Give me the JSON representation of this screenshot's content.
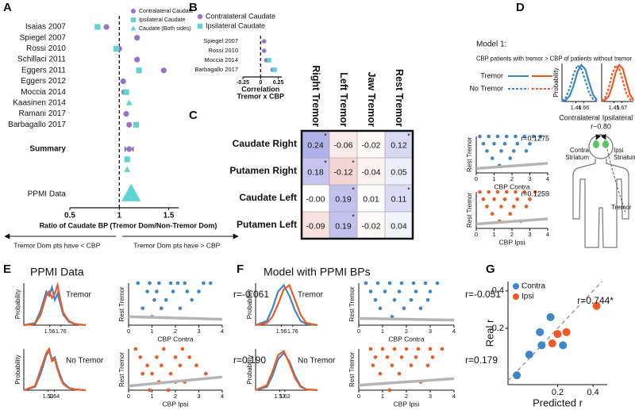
{
  "panels": [
    {
      "label": "A"
    },
    {
      "label": "B"
    },
    {
      "label": "C"
    },
    {
      "label": "D"
    },
    {
      "label": "E",
      "title": "PPMI Data"
    },
    {
      "label": "F",
      "title": "Model with PPMI BPs"
    },
    {
      "label": "G"
    }
  ],
  "diagram": {
    "title": "Model 1:",
    "statement": "CBP patients with tremor > CBP of patients without tremor",
    "legend": [
      "Tremor",
      "No Tremor"
    ],
    "correlation": "r~0.80",
    "contra_label": [
      "Contra",
      "Striatum"
    ],
    "ipsi_label": [
      "Ipsi",
      "Striatum"
    ],
    "effector_label": "Tremor"
  },
  "chart_data": [
    {
      "type": "forest",
      "categories": [
        "Isaias 2007",
        "Spiegel 2007",
        "Rossi 2010",
        "Schillaci 2011",
        "Eggers 2011",
        "Eggers 2012",
        "Moccia 2014",
        "Kaasinen 2014",
        "Ramani 2017",
        "Barbagallo 2017",
        "Summary",
        null,
        null,
        "PPMI Data"
      ],
      "bold_category": 10,
      "series": [
        {
          "name": "Contralateral Caudate",
          "color": "#9a72c9",
          "marker": "circle",
          "values": [
            0.87,
            1.18,
            1.0,
            1.18,
            1.45,
            1.04,
            1.05,
            null,
            1.07,
            1.1,
            1.1,
            null,
            null,
            null
          ],
          "errors": [
            null,
            null,
            null,
            null,
            null,
            null,
            null,
            null,
            null,
            null,
            0.04,
            null,
            null,
            null
          ]
        },
        {
          "name": "Ipsilateral Caudate",
          "color": "#5fd3d1",
          "marker": "square",
          "values": [
            0.78,
            null,
            0.97,
            null,
            1.2,
            null,
            1.07,
            null,
            null,
            1.17,
            null,
            1.08,
            null,
            null
          ]
        },
        {
          "name": "Caudate (Both sides)",
          "color": "#5fd3d1",
          "marker": "triangle",
          "values": [
            null,
            null,
            null,
            null,
            null,
            null,
            null,
            1.1,
            null,
            null,
            null,
            null,
            1.08,
            1.12
          ]
        }
      ],
      "xlim": [
        0.5,
        1.6
      ],
      "xticks": [
        0.5,
        1,
        1.5
      ],
      "reference_line": 1,
      "xlabel": [
        "Ratio of Caudate BP (Tremor Dom/Non-Tremor Dom)"
      ],
      "annotations": [
        "Tremor Dom pts have < CBP",
        "Tremor Dom pts have > CBP"
      ]
    },
    {
      "type": "forest",
      "categories": [
        "Spiegel 2007",
        "Rossi 2010",
        "Moccia 2014",
        "Barbagallo 2017"
      ],
      "series": [
        {
          "name": "Contralateral Caudate",
          "color": "#9a72c9",
          "marker": "circle",
          "values": [
            0.05,
            0.05,
            0.08,
            0.17
          ]
        },
        {
          "name": "Ipsilateral Caudate",
          "color": "#5fd3d1",
          "marker": "square",
          "values": [
            null,
            null,
            0.12,
            0.2
          ]
        }
      ],
      "xlim": [
        -0.25,
        0.3
      ],
      "xticks": [
        -0.25,
        0,
        0.25
      ],
      "reference_line": 0,
      "xlabel": [
        "Correlation",
        "Tremor x CBP"
      ]
    },
    {
      "type": "heatmap",
      "columns": [
        "Right Tremor",
        "Left Tremor",
        "Jaw Tremor",
        "Rest Tremor"
      ],
      "rows": [
        "Caudate Right",
        "Putamen Right",
        "Caudate Left",
        "Putamen Left"
      ],
      "values": [
        [
          0.24,
          -0.06,
          -0.02,
          0.12
        ],
        [
          0.18,
          -0.12,
          -0.04,
          0.05
        ],
        [
          0,
          0.19,
          0.01,
          0.11
        ],
        [
          -0.09,
          0.19,
          -0.02,
          0.04
        ]
      ],
      "value_labels": [
        [
          "0.24",
          "-0.06",
          "-0.02",
          "0.12"
        ],
        [
          "0.18",
          "-0.12",
          "-0.04",
          "0.05"
        ],
        [
          "-0.00",
          "0.19",
          "0.01",
          "0.11"
        ],
        [
          "-0.09",
          "0.19",
          "-0.02",
          "0.04"
        ]
      ],
      "significant": [
        [
          true,
          false,
          false,
          true
        ],
        [
          true,
          true,
          false,
          false
        ],
        [
          false,
          true,
          false,
          true
        ],
        [
          false,
          true,
          false,
          false
        ]
      ],
      "significance_label": "*",
      "clim": [
        -0.25,
        0.25
      ],
      "colors": [
        "#d9534f",
        "#5b5bd2"
      ]
    },
    {
      "type": "line",
      "x": [
        1.1,
        1.2,
        1.3,
        1.4,
        1.5,
        1.6,
        1.7,
        1.8,
        1.9,
        2.0
      ],
      "xlim": [
        1.1,
        2.0
      ],
      "ylim": [
        0,
        1
      ],
      "xticks": [
        1.46,
        1.66
      ],
      "xlabel": "Contralateral",
      "ylabel": "Probability",
      "series": [
        {
          "color": "#3d87c8",
          "dash": false,
          "values": [
            0.01,
            0.04,
            0.15,
            0.42,
            0.78,
            0.96,
            0.85,
            0.5,
            0.18,
            0.04
          ]
        },
        {
          "color": "#3d87c8",
          "dash": true,
          "values": [
            0.02,
            0.1,
            0.35,
            0.72,
            0.95,
            0.86,
            0.55,
            0.22,
            0.06,
            0.01
          ]
        }
      ]
    },
    {
      "type": "line",
      "x": [
        1.1,
        1.2,
        1.3,
        1.4,
        1.5,
        1.6,
        1.7,
        1.8,
        1.9,
        2.0
      ],
      "xlim": [
        1.1,
        2.0
      ],
      "ylim": [
        0,
        1
      ],
      "xticks": [
        1.45,
        1.67
      ],
      "xlabel": "Ipsilateral",
      "series": [
        {
          "color": "#ef5a24",
          "dash": false,
          "values": [
            0.01,
            0.04,
            0.14,
            0.4,
            0.77,
            0.96,
            0.86,
            0.52,
            0.19,
            0.04
          ]
        },
        {
          "color": "#ef5a24",
          "dash": true,
          "values": [
            0.02,
            0.1,
            0.36,
            0.73,
            0.95,
            0.85,
            0.54,
            0.21,
            0.06,
            0.01
          ]
        }
      ]
    },
    {
      "type": "scatter",
      "color": "#3d87c8",
      "xlim": [
        0,
        4
      ],
      "ylim": [
        0,
        5
      ],
      "xticks": [
        0,
        1,
        2,
        3,
        4
      ],
      "xlabel": "CBP Contra",
      "ylabel": "Rest Tremor",
      "annotation": "r=0.1275",
      "x": [
        0.2,
        0.7,
        1.2,
        1.7,
        2.2,
        2.7,
        3.2,
        3.6,
        0.4,
        1.0,
        1.6,
        2.3,
        3.0,
        0.6,
        1.4,
        2.1,
        2.8,
        0.9,
        1.9,
        1.3
      ],
      "y": [
        5,
        5,
        5,
        5,
        5,
        5,
        5,
        5,
        4,
        4,
        4,
        4,
        4,
        3,
        3,
        3,
        3,
        2,
        2,
        1
      ],
      "trend": {
        "x": [
          0,
          4
        ],
        "y": [
          0.6,
          1.3
        ]
      }
    },
    {
      "type": "scatter",
      "color": "#ef5a24",
      "xlim": [
        0,
        4
      ],
      "ylim": [
        0,
        5
      ],
      "xticks": [
        0,
        1,
        2,
        3,
        4
      ],
      "xlabel": "CBP Ipsi",
      "ylabel": "Rest Tremor",
      "annotation": "r=0.1259",
      "x": [
        0.2,
        0.7,
        1.2,
        1.7,
        2.2,
        2.7,
        3.3,
        0.4,
        1.0,
        1.6,
        2.3,
        3.0,
        0.6,
        1.4,
        2.1,
        2.8,
        0.9,
        1.9,
        1.3,
        2.5
      ],
      "y": [
        5,
        5,
        5,
        5,
        5,
        5,
        5,
        4,
        4,
        4,
        4,
        4,
        3,
        3,
        3,
        3,
        2,
        2,
        1,
        1
      ],
      "trend": {
        "x": [
          0,
          4
        ],
        "y": [
          0.6,
          1.3
        ]
      }
    },
    {
      "type": "line",
      "title": "Tremor",
      "ylabel": "Probability",
      "x": [
        1.1,
        1.3,
        1.4,
        1.5,
        1.55,
        1.6,
        1.65,
        1.7,
        1.75,
        1.8,
        1.9,
        2.0,
        2.2
      ],
      "xlim": [
        1.1,
        2.2
      ],
      "ylim": [
        0,
        1
      ],
      "xticks": [
        1.56,
        1.76
      ],
      "xtick_colors": [
        "#3d87c8",
        "#ef5a24"
      ],
      "series": [
        {
          "color": "#3d87c8",
          "dash": false,
          "values": [
            0,
            0.05,
            0.35,
            0.8,
            0.7,
            0.9,
            0.6,
            0.75,
            0.5,
            0.25,
            0.08,
            0.03,
            0
          ]
        },
        {
          "color": "#ef5a24",
          "dash": false,
          "values": [
            0,
            0.03,
            0.25,
            0.7,
            0.8,
            0.65,
            0.75,
            0.95,
            0.6,
            0.3,
            0.1,
            0.03,
            0
          ]
        }
      ]
    },
    {
      "type": "line",
      "title": "No Tremor",
      "ylabel": "Probability",
      "x": [
        1.1,
        1.3,
        1.4,
        1.5,
        1.55,
        1.6,
        1.65,
        1.7,
        1.75,
        1.8,
        1.9,
        2.0,
        2.2
      ],
      "xlim": [
        1.1,
        2.2
      ],
      "ylim": [
        0,
        1
      ],
      "xticks": [
        1.53,
        1.64
      ],
      "xtick_colors": [
        "#ef5a24",
        "#3d87c8"
      ],
      "series": [
        {
          "color": "#3d87c8",
          "dash": false,
          "values": [
            0,
            0.08,
            0.4,
            0.85,
            0.95,
            0.75,
            0.8,
            0.55,
            0.35,
            0.18,
            0.06,
            0.02,
            0
          ]
        },
        {
          "color": "#ef5a24",
          "dash": false,
          "values": [
            0,
            0.1,
            0.5,
            0.9,
            1.0,
            0.7,
            0.75,
            0.5,
            0.3,
            0.15,
            0.05,
            0.02,
            0
          ]
        }
      ]
    },
    {
      "type": "scatter",
      "color": "#3d87c8",
      "xlim": [
        0,
        4
      ],
      "ylim": [
        0,
        5
      ],
      "xticks": [
        0,
        1,
        2,
        3,
        4
      ],
      "xlabel": "CBP Contra",
      "ylabel": "Rest Tremor",
      "annotation": "r=-0.061",
      "x": [
        0.4,
        0.9,
        1.3,
        1.8,
        2.1,
        2.4,
        3.2,
        3.5,
        0.8,
        1.2,
        1.9,
        2.5,
        3.0,
        1.1,
        1.6,
        2.7,
        0.6,
        1.4,
        2.2,
        1.0
      ],
      "y": [
        5,
        5,
        5,
        5,
        5,
        5,
        5,
        5,
        4,
        4,
        4,
        4,
        4,
        3,
        3,
        3,
        2,
        2,
        2,
        1
      ],
      "trend": {
        "x": [
          0,
          4
        ],
        "y": [
          1.0,
          0.7
        ]
      }
    },
    {
      "type": "scatter",
      "color": "#ef5a24",
      "xlim": [
        0,
        4
      ],
      "ylim": [
        0,
        5
      ],
      "xticks": [
        0,
        1,
        2,
        3,
        4
      ],
      "xlabel": "CBP Ipsi",
      "ylabel": "Rest Tremor",
      "annotation": "r=0.190",
      "x": [
        0.3,
        1.5,
        2.3,
        0.5,
        1.2,
        2.0,
        2.6,
        0.8,
        1.4,
        2.2,
        2.9,
        1.0,
        1.8,
        0.6,
        1.3,
        2.4,
        0.9,
        1.7,
        3.3,
        2.0
      ],
      "y": [
        5,
        5,
        5,
        4,
        4,
        4,
        4,
        3,
        3,
        3,
        3,
        2,
        2,
        2,
        1,
        1,
        0,
        0,
        2,
        1
      ],
      "trend": {
        "x": [
          0,
          4
        ],
        "y": [
          0.5,
          1.6
        ]
      }
    },
    {
      "type": "line",
      "title": "Tremor",
      "ylabel": "Probability",
      "x": [
        1.1,
        1.3,
        1.4,
        1.5,
        1.6,
        1.7,
        1.8,
        1.9,
        2.0,
        2.2
      ],
      "xlim": [
        1.1,
        2.2
      ],
      "ylim": [
        0,
        1
      ],
      "xticks": [
        1.56,
        1.76
      ],
      "xtick_colors": [
        "#3d87c8",
        "#ef5a24"
      ],
      "series": [
        {
          "color": "#3d87c8",
          "dash": false,
          "values": [
            0,
            0.1,
            0.4,
            0.8,
            0.95,
            0.7,
            0.35,
            0.1,
            0.03,
            0
          ]
        },
        {
          "color": "#ef5a24",
          "dash": false,
          "values": [
            0,
            0.05,
            0.2,
            0.5,
            0.85,
            0.95,
            0.6,
            0.25,
            0.05,
            0
          ]
        }
      ]
    },
    {
      "type": "line",
      "title": "No Tremor",
      "ylabel": "Probability",
      "x": [
        1.1,
        1.3,
        1.4,
        1.5,
        1.6,
        1.7,
        1.8,
        1.9,
        2.0,
        2.2
      ],
      "xlim": [
        1.1,
        2.2
      ],
      "ylim": [
        0,
        1
      ],
      "xticks": [
        1.53,
        1.62
      ],
      "xtick_colors": [
        "#ef5a24",
        "#3d87c8"
      ],
      "series": [
        {
          "color": "#3d87c8",
          "dash": false,
          "values": [
            0,
            0.08,
            0.35,
            0.75,
            0.9,
            0.7,
            0.35,
            0.1,
            0.02,
            0
          ]
        },
        {
          "color": "#ef5a24",
          "dash": false,
          "values": [
            0,
            0.12,
            0.45,
            0.85,
            0.95,
            0.65,
            0.3,
            0.08,
            0.02,
            0
          ]
        }
      ]
    },
    {
      "type": "scatter",
      "color": "#3d87c8",
      "xlim": [
        0,
        4
      ],
      "ylim": [
        0,
        5
      ],
      "xticks": [
        0,
        1,
        2,
        3,
        4
      ],
      "xlabel": "CBP Contra",
      "ylabel": "Rest Tremor",
      "annotation": "r=-0.051",
      "x": [
        0.3,
        0.8,
        1.3,
        1.8,
        2.3,
        2.8,
        3.3,
        0.5,
        1.1,
        1.7,
        2.4,
        3.0,
        0.7,
        1.5,
        2.2,
        2.9,
        0.9,
        1.9,
        2.6,
        1.4
      ],
      "y": [
        5,
        5,
        5,
        5,
        5,
        5,
        5,
        4,
        4,
        4,
        4,
        4,
        3,
        3,
        3,
        3,
        2,
        2,
        2,
        1
      ],
      "trend": {
        "x": [
          0,
          4
        ],
        "y": [
          0.8,
          0.6
        ]
      }
    },
    {
      "type": "scatter",
      "color": "#ef5a24",
      "xlim": [
        0,
        4
      ],
      "ylim": [
        0,
        5
      ],
      "xticks": [
        0,
        1,
        2,
        3,
        4
      ],
      "xlabel": "CBP Ipsi",
      "ylabel": "Rest Tremor",
      "annotation": "r=0.179",
      "x": [
        0.5,
        1.0,
        1.5,
        2.0,
        2.5,
        3.0,
        3.5,
        0.7,
        1.2,
        1.8,
        2.4,
        3.1,
        0.6,
        1.4,
        2.2,
        2.9,
        0.9,
        1.7,
        2.6,
        1.3
      ],
      "y": [
        5,
        5,
        5,
        5,
        5,
        5,
        5,
        4,
        4,
        4,
        4,
        4,
        3,
        3,
        3,
        3,
        2,
        2,
        1,
        0
      ],
      "trend": {
        "x": [
          0,
          4
        ],
        "y": [
          0.6,
          1.4
        ]
      }
    },
    {
      "type": "scatter",
      "xlim": [
        -0.08,
        0.48
      ],
      "ylim": [
        -0.1,
        0.45
      ],
      "xticks": [
        0.2,
        0.4
      ],
      "yticks": [
        0.2,
        0.4
      ],
      "xlabel": "Predicted r",
      "ylabel": "Real r",
      "annotation": "r=0.744*",
      "diagonal": true,
      "legend": true,
      "series": [
        {
          "name": "Contra",
          "color": "#3d87c8",
          "x": [
            -0.03,
            0.04,
            0.1,
            0.16,
            0.11,
            0.23
          ],
          "y": [
            -0.05,
            0.06,
            0.18,
            0.26,
            0.11,
            0.11
          ]
        },
        {
          "name": "Ipsi",
          "color": "#ef5a24",
          "x": [
            0.17,
            0.2,
            0.25,
            0.42
          ],
          "y": [
            0.12,
            0.17,
            0.18,
            0.32
          ]
        }
      ]
    }
  ]
}
